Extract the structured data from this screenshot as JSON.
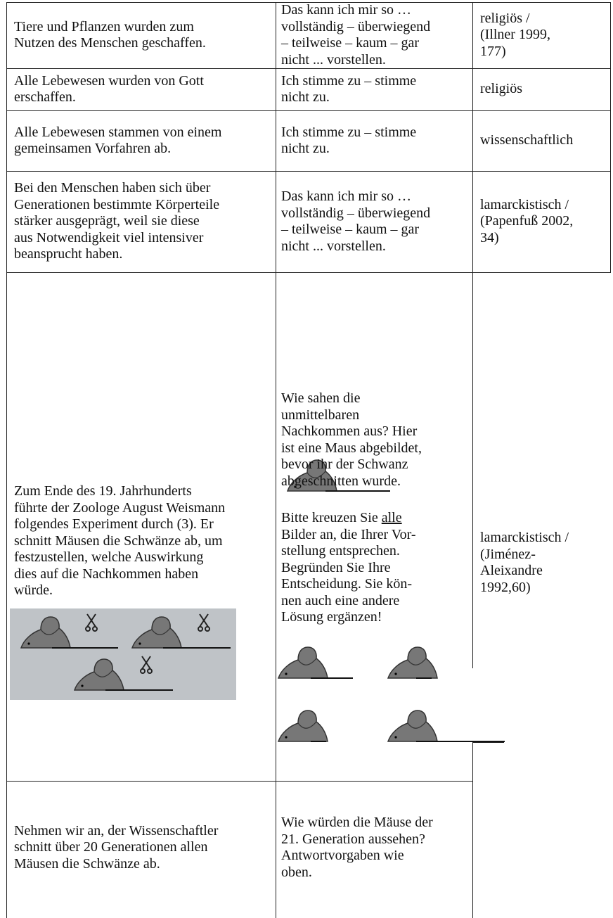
{
  "table": {
    "rows": [
      {
        "statement": [
          "Tiere und Pflanzen wurden zum",
          "Nutzen des Menschen geschaffen."
        ],
        "response": [
          "Das kann ich mir so …",
          "vollständig – überwiegend",
          "– teilweise – kaum – gar",
          "nicht ... vorstellen."
        ],
        "category": [
          "religiös /",
          "(Illner 1999,",
          " 177)"
        ]
      },
      {
        "statement": [
          "Alle Lebewesen wurden von Gott",
          "erschaffen."
        ],
        "response": [
          "Ich stimme zu – stimme",
          "nicht zu."
        ],
        "category": [
          "religiös"
        ]
      },
      {
        "statement": [
          "Alle Lebewesen stammen von einem",
          "gemeinsamen Vorfahren ab."
        ],
        "response": [
          "Ich stimme zu – stimme",
          "nicht zu."
        ],
        "category": [
          "wissenschaftlich"
        ]
      },
      {
        "statement": [
          "Bei den Menschen haben sich über",
          "Generationen bestimmte Körperteile",
          "stärker ausgeprägt, weil sie diese",
          "aus Notwendigkeit viel intensiver",
          "beansprucht haben."
        ],
        "response": [
          "Das kann ich mir so …",
          "vollständig – überwiegend",
          "– teilweise – kaum – gar",
          "nicht ... vorstellen."
        ],
        "category": [
          "lamarckistisch /",
          "(Papenfuß 2002,",
          " 34)"
        ]
      },
      {
        "statement": [
          "Zum Ende des 19. Jahrhunderts",
          "führte der Zoologe August Weismann",
          "folgendes Experiment durch (3). Er",
          "schnitt Mäusen die Schwänze ab, um",
          "festzustellen, welche Auswirkung",
          "dies auf die Nachkommen haben",
          "würde."
        ],
        "question": [
          "Wie sahen die",
          "unmittelbaren",
          "Nachkommen aus? Hier",
          "ist eine Maus abgebildet,",
          "bevor ihr der Schwanz",
          "abgeschnitten wurde."
        ],
        "instruction_start": "Bitte kreuzen Sie",
        "instruction_underlined": "alle",
        "instruction": [
          "Bilder an, die Ihrer Vor-",
          "stellung entsprechen.",
          "Begründen Sie Ihre",
          "Entscheidung. Sie kön-",
          "nen auch eine andere",
          "Lösung ergänzen!"
        ],
        "category": [
          "lamarckistisch /",
          "(Jiménez-",
          "Aleixandre",
          "1992,60)"
        ]
      },
      {
        "statement": [
          "Nehmen wir an, der Wissenschaftler",
          "schnitt über 20 Generationen allen",
          "Mäusen die Schwänze ab."
        ],
        "response": [
          "Wie würden die Mäuse der",
          "21. Generation aussehen?",
          "Antwortvorgaben wie",
          "oben."
        ]
      }
    ]
  }
}
